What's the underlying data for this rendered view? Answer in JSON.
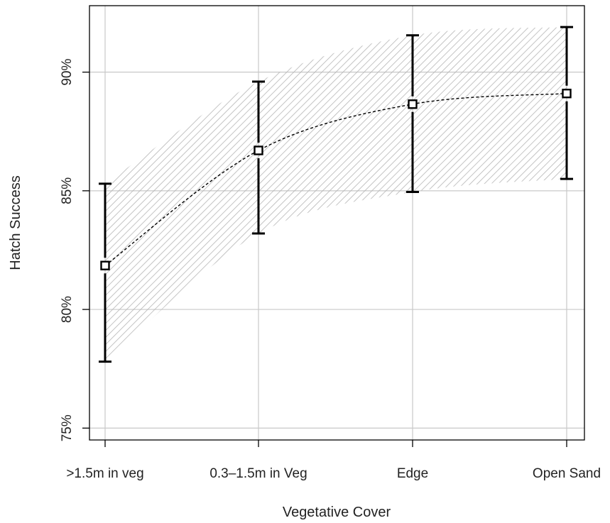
{
  "chart_data": {
    "type": "line",
    "title": "",
    "xlabel": "Vegetative Cover",
    "ylabel": "Hatch Success",
    "categories": [
      ">1.5m in veg",
      "0.3–1.5m in Veg",
      "Edge",
      "Open Sand"
    ],
    "values": [
      81.85,
      86.7,
      88.65,
      89.1
    ],
    "error_low": [
      77.8,
      83.2,
      84.95,
      85.5
    ],
    "error_high": [
      85.3,
      89.6,
      91.55,
      91.9
    ],
    "y_ticks": [
      75,
      80,
      85,
      90
    ],
    "y_tick_labels": [
      "75%",
      "80%",
      "85%",
      "90%"
    ],
    "ylim": [
      74.5,
      92.8
    ],
    "grid": true,
    "colors": {
      "line": "#000000",
      "band_hatch": "#b5b5b5",
      "grid": "#c8c8c8",
      "frame": "#000000"
    }
  }
}
